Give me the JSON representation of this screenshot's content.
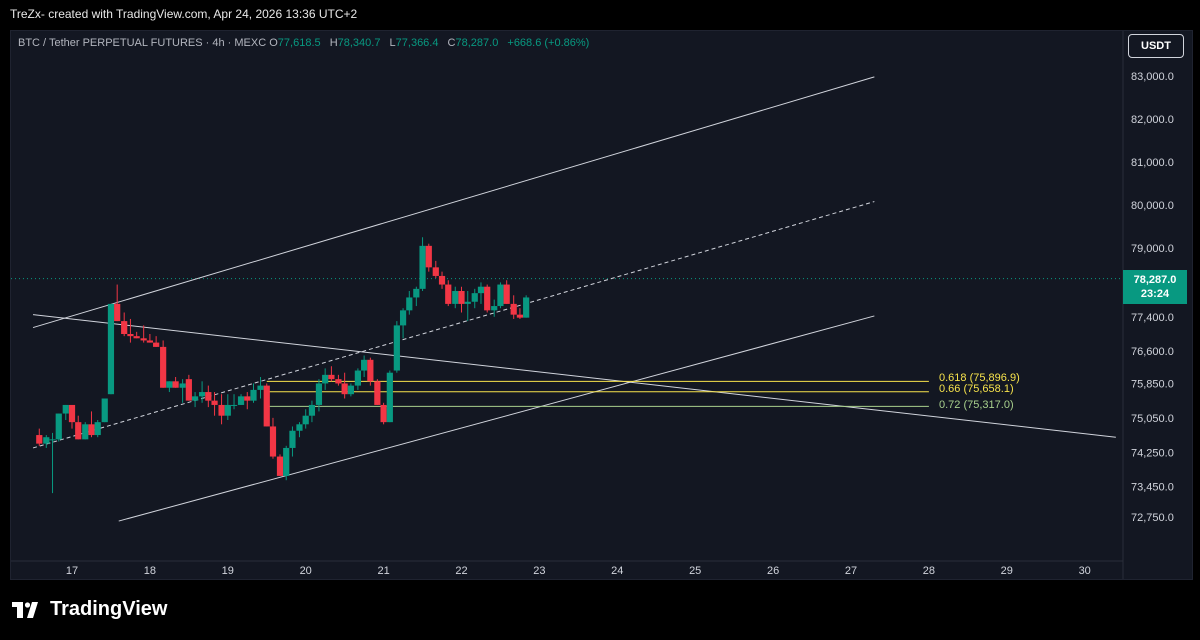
{
  "credit": "TreZx- created with TradingView.com, Apr 24, 2026 13:36 UTC+2",
  "legend": {
    "symbol": "BTC / Tether PERPETUAL FUTURES · 4h · MEXC",
    "open_label": "O",
    "open": "77,618.5",
    "high_label": "H",
    "high": "78,340.7",
    "low_label": "L",
    "low": "77,366.4",
    "close_label": "C",
    "close": "78,287.0",
    "change": "+668.6 (+0.86%)"
  },
  "currency_button": "USDT",
  "last_price": {
    "value": "78,287.0",
    "countdown": "23:24"
  },
  "brand": "TradingView",
  "colors": {
    "up": "#089981",
    "down": "#f23645",
    "background": "#131722",
    "fib_yellow": "#f7e34c",
    "fib_green": "#a8d08d"
  },
  "chart_data": {
    "type": "candlestick",
    "y_ticks": [
      83000,
      82000,
      81000,
      80000,
      79000,
      77400,
      76600,
      75850,
      75050,
      74250,
      73450,
      72750
    ],
    "y_tick_labels": [
      "83,000.0",
      "82,000.0",
      "81,000.0",
      "80,000.0",
      "79,000.0",
      "77,400.0",
      "76,600.0",
      "75,850.0",
      "75,050.0",
      "74,250.0",
      "73,450.0",
      "72,750.0"
    ],
    "x_ticks": [
      17,
      18,
      19,
      20,
      21,
      22,
      23,
      24,
      25,
      26,
      27,
      28,
      29,
      30
    ],
    "x_tick_labels": [
      "17",
      "18",
      "19",
      "20",
      "21",
      "22",
      "23",
      "24",
      "25",
      "26",
      "27",
      "28",
      "29",
      "30"
    ],
    "ylim": [
      72400,
      83400
    ],
    "xlim": [
      16.5,
      30.4
    ],
    "candles": [
      [
        16.58,
        74650,
        74800,
        74400,
        74450
      ],
      [
        16.67,
        74450,
        74650,
        74350,
        74600
      ],
      [
        16.75,
        74550,
        74700,
        73300,
        74550
      ],
      [
        16.83,
        74550,
        75150,
        74500,
        75150
      ],
      [
        16.92,
        75150,
        75350,
        75000,
        75350
      ],
      [
        17.0,
        75350,
        75350,
        74800,
        74950
      ],
      [
        17.08,
        74950,
        75100,
        74550,
        74550
      ],
      [
        17.17,
        74550,
        74950,
        74550,
        74900
      ],
      [
        17.25,
        74900,
        75200,
        74600,
        74650
      ],
      [
        17.33,
        74650,
        75000,
        74600,
        74950
      ],
      [
        17.42,
        74950,
        75500,
        74950,
        75500
      ],
      [
        17.5,
        75600,
        77700,
        75600,
        77700
      ],
      [
        17.58,
        77700,
        78150,
        77300,
        77300
      ],
      [
        17.67,
        77300,
        77500,
        76950,
        77000
      ],
      [
        17.75,
        77000,
        77350,
        76800,
        76950
      ],
      [
        17.83,
        76950,
        77050,
        76900,
        76900
      ],
      [
        17.92,
        76900,
        77200,
        76800,
        76850
      ],
      [
        18.0,
        76850,
        77000,
        76800,
        76800
      ],
      [
        18.08,
        76800,
        76950,
        76700,
        76700
      ],
      [
        18.17,
        76700,
        76850,
        75750,
        75750
      ],
      [
        18.25,
        75750,
        75900,
        75650,
        75900
      ],
      [
        18.33,
        75900,
        76000,
        75750,
        75750
      ],
      [
        18.42,
        75750,
        75950,
        75400,
        75850
      ],
      [
        18.5,
        75950,
        76050,
        75450,
        75450
      ],
      [
        18.58,
        75450,
        75650,
        75300,
        75550
      ],
      [
        18.67,
        75550,
        75900,
        75400,
        75650
      ],
      [
        18.75,
        75650,
        75800,
        75300,
        75450
      ],
      [
        18.83,
        75450,
        75650,
        75100,
        75350
      ],
      [
        18.92,
        75350,
        75600,
        74900,
        75100
      ],
      [
        19.0,
        75100,
        75600,
        75000,
        75350
      ],
      [
        19.08,
        75350,
        75600,
        75250,
        75350
      ],
      [
        19.17,
        75350,
        75600,
        75350,
        75550
      ],
      [
        19.25,
        75550,
        75650,
        75250,
        75450
      ],
      [
        19.33,
        75450,
        75850,
        75400,
        75700
      ],
      [
        19.42,
        75700,
        76000,
        75500,
        75800
      ],
      [
        19.5,
        75800,
        75850,
        74850,
        74850
      ],
      [
        19.58,
        74850,
        75050,
        74100,
        74150
      ],
      [
        19.67,
        74150,
        74200,
        73700,
        73700
      ],
      [
        19.75,
        73700,
        74400,
        73600,
        74350
      ],
      [
        19.83,
        74350,
        74850,
        74150,
        74750
      ],
      [
        19.92,
        74750,
        74950,
        74600,
        74900
      ],
      [
        20.0,
        74900,
        75250,
        74800,
        75100
      ],
      [
        20.08,
        75100,
        75450,
        74950,
        75350
      ],
      [
        20.17,
        75350,
        75950,
        75200,
        75850
      ],
      [
        20.25,
        75850,
        76200,
        75700,
        76050
      ],
      [
        20.33,
        76050,
        76250,
        75900,
        75950
      ],
      [
        20.42,
        75950,
        76050,
        75800,
        75850
      ],
      [
        20.5,
        75850,
        76100,
        75500,
        75600
      ],
      [
        20.58,
        75600,
        75850,
        75550,
        75800
      ],
      [
        20.67,
        75800,
        76200,
        75700,
        76150
      ],
      [
        20.75,
        76150,
        76500,
        76000,
        76400
      ],
      [
        20.83,
        76400,
        76450,
        75800,
        75900
      ],
      [
        20.92,
        75900,
        75950,
        75350,
        75350
      ],
      [
        21.0,
        75350,
        75400,
        74900,
        74950
      ],
      [
        21.08,
        74950,
        76150,
        74950,
        76100
      ],
      [
        21.17,
        76150,
        77300,
        76100,
        77200
      ],
      [
        21.25,
        77200,
        77600,
        76900,
        77550
      ],
      [
        21.33,
        77550,
        78000,
        77450,
        77850
      ],
      [
        21.42,
        77850,
        78100,
        77650,
        78050
      ],
      [
        21.5,
        78050,
        79250,
        78000,
        79050
      ],
      [
        21.58,
        79050,
        79100,
        78450,
        78550
      ],
      [
        21.67,
        78550,
        78700,
        78300,
        78350
      ],
      [
        21.75,
        78350,
        78450,
        78050,
        78150
      ],
      [
        21.83,
        78150,
        78250,
        77650,
        77700
      ],
      [
        21.92,
        77700,
        78100,
        77600,
        78000
      ],
      [
        22.0,
        78000,
        78100,
        77500,
        77700
      ],
      [
        22.08,
        77700,
        78000,
        77300,
        77750
      ],
      [
        22.17,
        77750,
        78050,
        77600,
        77950
      ],
      [
        22.25,
        77950,
        78200,
        77700,
        78100
      ],
      [
        22.33,
        78100,
        78150,
        77500,
        77550
      ],
      [
        22.42,
        77550,
        77800,
        77400,
        77650
      ],
      [
        22.5,
        77650,
        78200,
        77600,
        78150
      ],
      [
        22.58,
        78150,
        78250,
        77700,
        77700
      ],
      [
        22.67,
        77700,
        77900,
        77350,
        77450
      ],
      [
        22.75,
        77450,
        77600,
        77350,
        77380
      ],
      [
        22.83,
        77380,
        77900,
        77380,
        77850
      ]
    ],
    "fibonacci": [
      {
        "label": "0.618 (75,896.9)",
        "value": 75896.9
      },
      {
        "label": "0.66 (75,658.1)",
        "value": 75658.1
      },
      {
        "label": "0.72 (75,317.0)",
        "value": 75317.0
      }
    ]
  }
}
